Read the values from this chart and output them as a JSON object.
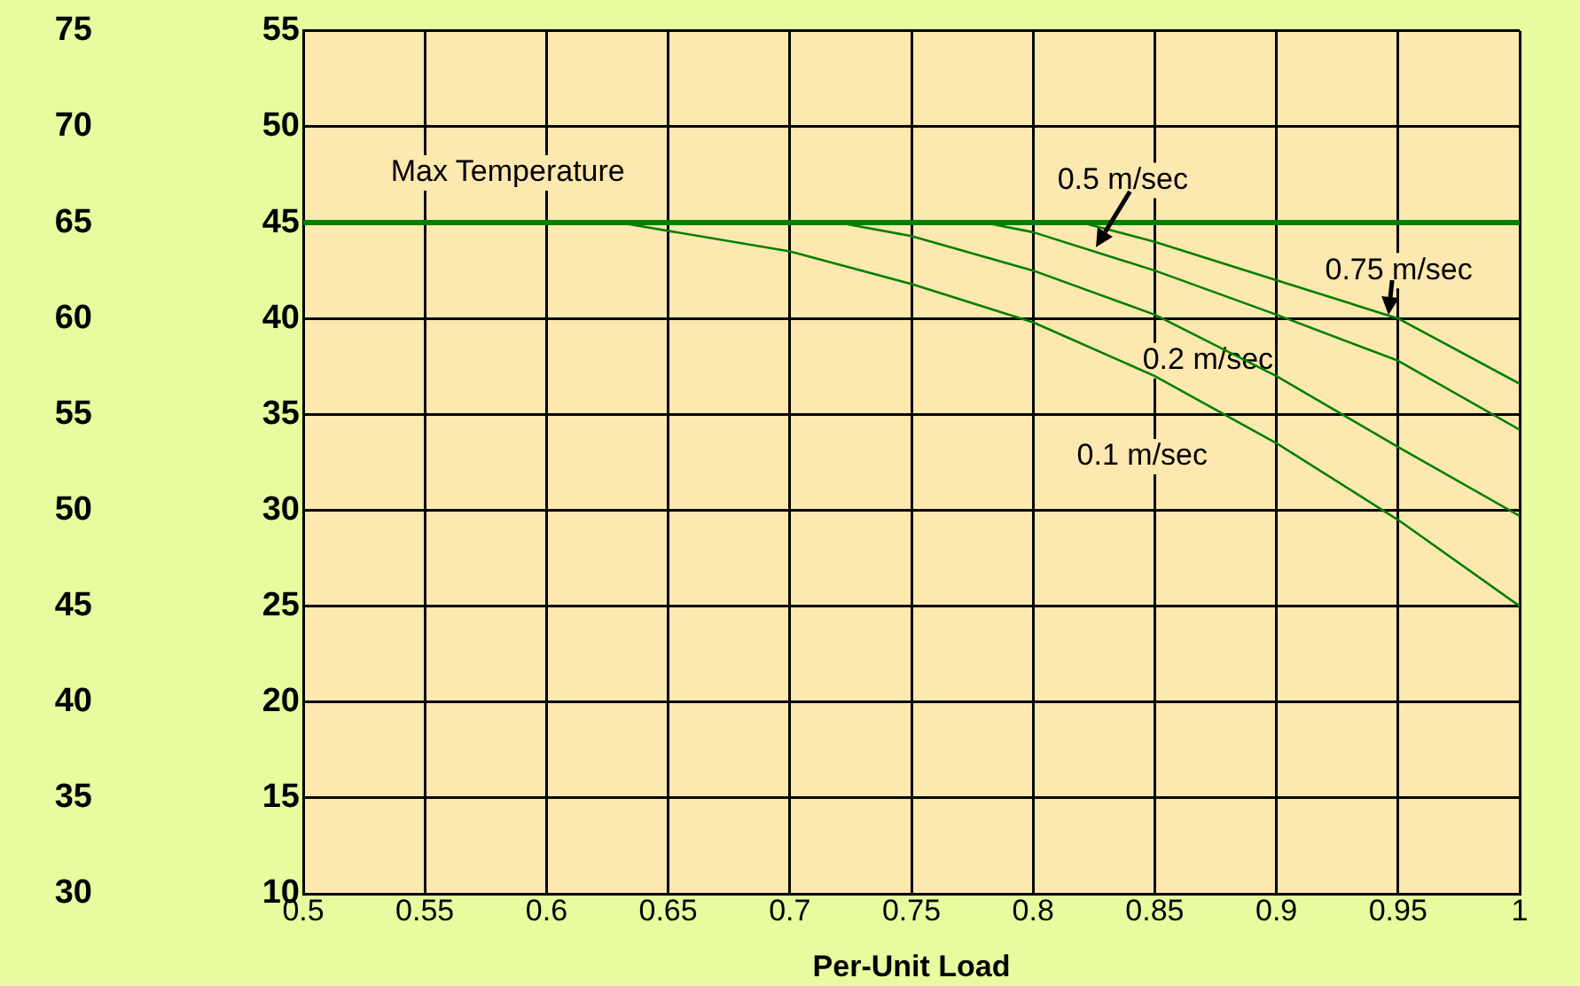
{
  "chart_data": {
    "type": "line",
    "xlabel": "Per-Unit Load",
    "xlim": [
      0.5,
      1
    ],
    "xticks": [
      0.5,
      0.55,
      0.6,
      0.65,
      0.7,
      0.75,
      0.8,
      0.85,
      0.9,
      0.95,
      1
    ],
    "ylim": [
      10,
      55
    ],
    "yticks": [
      10,
      15,
      20,
      25,
      30,
      35,
      40,
      45,
      50,
      55
    ],
    "y2lim": [
      30,
      75
    ],
    "y2ticks": [
      30,
      35,
      40,
      45,
      50,
      55,
      60,
      65,
      70,
      75
    ],
    "series": [
      {
        "name": "0.1 m/sec",
        "color": "#008000",
        "x": [
          0.63,
          0.7,
          0.75,
          0.8,
          0.85,
          0.9,
          0.95,
          1
        ],
        "values": [
          45,
          43.5,
          41.8,
          39.8,
          37,
          33.5,
          29.5,
          25
        ]
      },
      {
        "name": "0.2 m/sec",
        "color": "#008000",
        "x": [
          0.72,
          0.75,
          0.8,
          0.85,
          0.9,
          0.95,
          1
        ],
        "values": [
          45,
          44.3,
          42.5,
          40.2,
          37,
          33.3,
          29.7
        ]
      },
      {
        "name": "0.5 m/sec",
        "color": "#008000",
        "x": [
          0.78,
          0.8,
          0.85,
          0.9,
          0.95,
          1
        ],
        "values": [
          45,
          44.5,
          42.5,
          40.2,
          37.8,
          34.2
        ]
      },
      {
        "name": "0.75 m/sec",
        "color": "#008000",
        "x": [
          0.82,
          0.85,
          0.9,
          0.95,
          1
        ],
        "values": [
          45,
          44,
          42,
          40,
          36.6
        ]
      }
    ],
    "ref_lines": [
      {
        "axis": "y",
        "value": 45,
        "label": "Max Temperature",
        "color": "#008000"
      }
    ],
    "grid": true,
    "legend": false,
    "marker": "none",
    "line_style": "solid"
  }
}
